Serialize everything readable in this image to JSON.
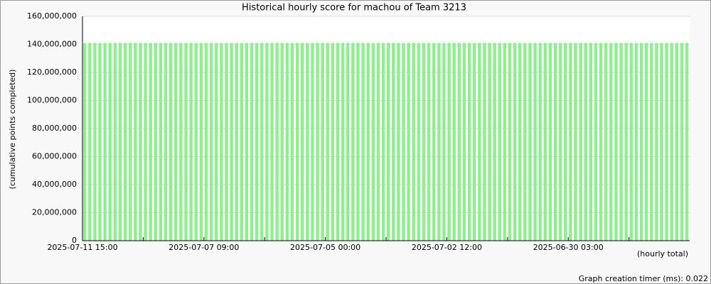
{
  "chart_data": {
    "type": "bar",
    "title": "Historical hourly score for machou of Team 3213",
    "y_label": "(cumulative points completed)",
    "x_note": "(hourly total)",
    "footer": "Graph creation timer (ms): 0.022",
    "color": "#90ee90",
    "grid": true,
    "ylim": [
      0,
      160000000
    ],
    "yticks": [
      0,
      {
        "value": 20000000,
        "label": "20,000,000"
      },
      {
        "value": 40000000,
        "label": "40,000,000"
      },
      {
        "value": 60000000,
        "label": "60,000,000"
      },
      {
        "value": 80000000,
        "label": "80,000,000"
      },
      {
        "value": 100000000,
        "label": "100,000,000"
      },
      {
        "value": 120000000,
        "label": "120,000,000"
      },
      {
        "value": 140000000,
        "label": "140,000,000"
      },
      {
        "value": 160000000,
        "label": "160,000,000"
      }
    ],
    "categories": [
      "2025-07-11 15:00",
      null,
      null,
      null,
      null,
      null,
      null,
      null,
      null,
      null,
      null,
      null,
      null,
      null,
      null,
      null,
      null,
      null,
      null,
      null,
      null,
      null,
      null,
      null,
      "2025-07-07 09:00",
      null,
      null,
      null,
      null,
      null,
      null,
      null,
      null,
      null,
      null,
      null,
      null,
      null,
      null,
      null,
      null,
      null,
      null,
      null,
      null,
      null,
      null,
      null,
      "2025-07-05 00:00",
      null,
      null,
      null,
      null,
      null,
      null,
      null,
      null,
      null,
      null,
      null,
      null,
      null,
      null,
      null,
      null,
      null,
      null,
      null,
      null,
      null,
      null,
      null,
      "2025-07-02 12:00",
      null,
      null,
      null,
      null,
      null,
      null,
      null,
      null,
      null,
      null,
      null,
      null,
      null,
      null,
      null,
      null,
      null,
      null,
      null,
      null,
      null,
      null,
      null,
      "2025-06-30 03:00",
      null,
      null,
      null,
      null,
      null,
      null,
      null,
      null,
      null,
      null,
      null,
      null,
      null,
      null,
      null,
      null,
      null,
      null,
      null,
      null,
      null,
      null,
      null
    ],
    "values": [
      141000000,
      141000000,
      141000000,
      141000000,
      141000000,
      141000000,
      141000000,
      141000000,
      141000000,
      141000000,
      141000000,
      141000000,
      141000000,
      141000000,
      141000000,
      141000000,
      141000000,
      141000000,
      141000000,
      141000000,
      141000000,
      141000000,
      141000000,
      141000000,
      141000000,
      141000000,
      141000000,
      141000000,
      141000000,
      141000000,
      141000000,
      141000000,
      141000000,
      141000000,
      141000000,
      141000000,
      141000000,
      141000000,
      141000000,
      141000000,
      141000000,
      141000000,
      141000000,
      141000000,
      141000000,
      141000000,
      141000000,
      141000000,
      141000000,
      141000000,
      141000000,
      141000000,
      141000000,
      141000000,
      141000000,
      141000000,
      141000000,
      141000000,
      141000000,
      141000000,
      141000000,
      141000000,
      141000000,
      141000000,
      141000000,
      141000000,
      141000000,
      141000000,
      141000000,
      141000000,
      141000000,
      141000000,
      141000000,
      141000000,
      141000000,
      141000000,
      141000000,
      141000000,
      141000000,
      141000000,
      141000000,
      141000000,
      141000000,
      141000000,
      141000000,
      141000000,
      141000000,
      141000000,
      141000000,
      141000000,
      141000000,
      141000000,
      141000000,
      141000000,
      141000000,
      141000000,
      141000000,
      141000000,
      141000000,
      141000000,
      141000000,
      141000000,
      141000000,
      141000000,
      141000000,
      141000000,
      141000000,
      141000000,
      141000000,
      141000000,
      141000000,
      141000000,
      141000000,
      141000000,
      141000000,
      141000000,
      141000000,
      141000000,
      141000000,
      141000000
    ]
  }
}
